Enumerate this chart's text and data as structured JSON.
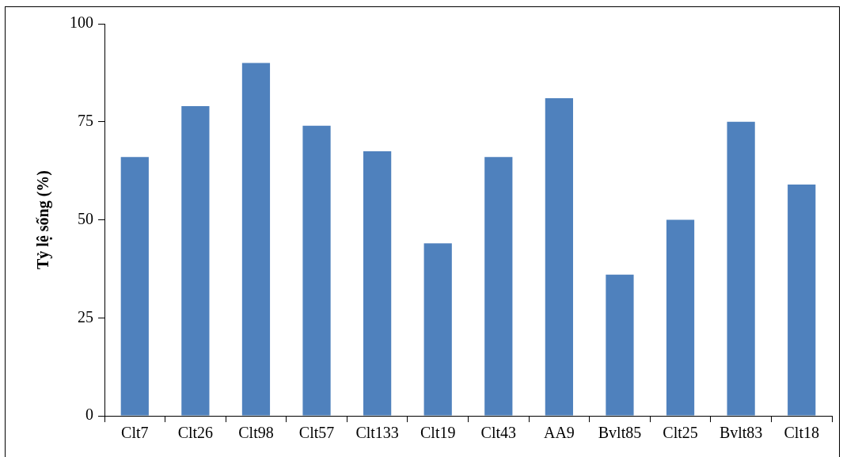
{
  "chart_data": {
    "type": "bar",
    "ylabel": "Tỷ lệ sống (%)",
    "categories": [
      "Clt7",
      "Clt26",
      "Clt98",
      "Clt57",
      "Clt133",
      "Clt19",
      "Clt43",
      "AA9",
      "Bvlt85",
      "Clt25",
      "Bvlt83",
      "Clt18"
    ],
    "values": [
      66,
      79,
      90,
      74,
      67.5,
      44,
      66,
      81,
      36,
      50,
      75,
      59
    ],
    "color": "#4f81bd",
    "ylim": [
      0,
      100
    ],
    "yticks": [
      0,
      25,
      50,
      75,
      100
    ],
    "grid": false,
    "legend": false
  }
}
